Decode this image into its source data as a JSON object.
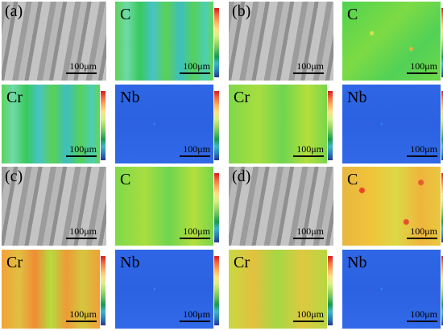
{
  "scale_text": "100μm",
  "groups": [
    {
      "label": "(a)",
      "panels": [
        {
          "type": "sem",
          "element": ""
        },
        {
          "type": "map",
          "element": "C",
          "style": "green-cyan-banded"
        },
        {
          "type": "map",
          "element": "Cr",
          "style": "green-cyan-banded"
        },
        {
          "type": "map",
          "element": "Nb",
          "style": "blue"
        }
      ]
    },
    {
      "label": "(b)",
      "panels": [
        {
          "type": "sem",
          "element": ""
        },
        {
          "type": "map",
          "element": "C",
          "style": "green-speckled"
        },
        {
          "type": "map",
          "element": "Cr",
          "style": "green-yellow"
        },
        {
          "type": "map",
          "element": "Nb",
          "style": "blue"
        }
      ]
    },
    {
      "label": "(c)",
      "panels": [
        {
          "type": "sem",
          "element": ""
        },
        {
          "type": "map",
          "element": "C",
          "style": "green-yellow"
        },
        {
          "type": "map",
          "element": "Cr",
          "style": "orange-banded"
        },
        {
          "type": "map",
          "element": "Nb",
          "style": "blue"
        }
      ]
    },
    {
      "label": "(d)",
      "panels": [
        {
          "type": "sem",
          "element": ""
        },
        {
          "type": "map",
          "element": "C",
          "style": "yellow-red"
        },
        {
          "type": "map",
          "element": "Cr",
          "style": "yellow-green"
        },
        {
          "type": "map",
          "element": "Nb",
          "style": "blue"
        }
      ]
    }
  ]
}
